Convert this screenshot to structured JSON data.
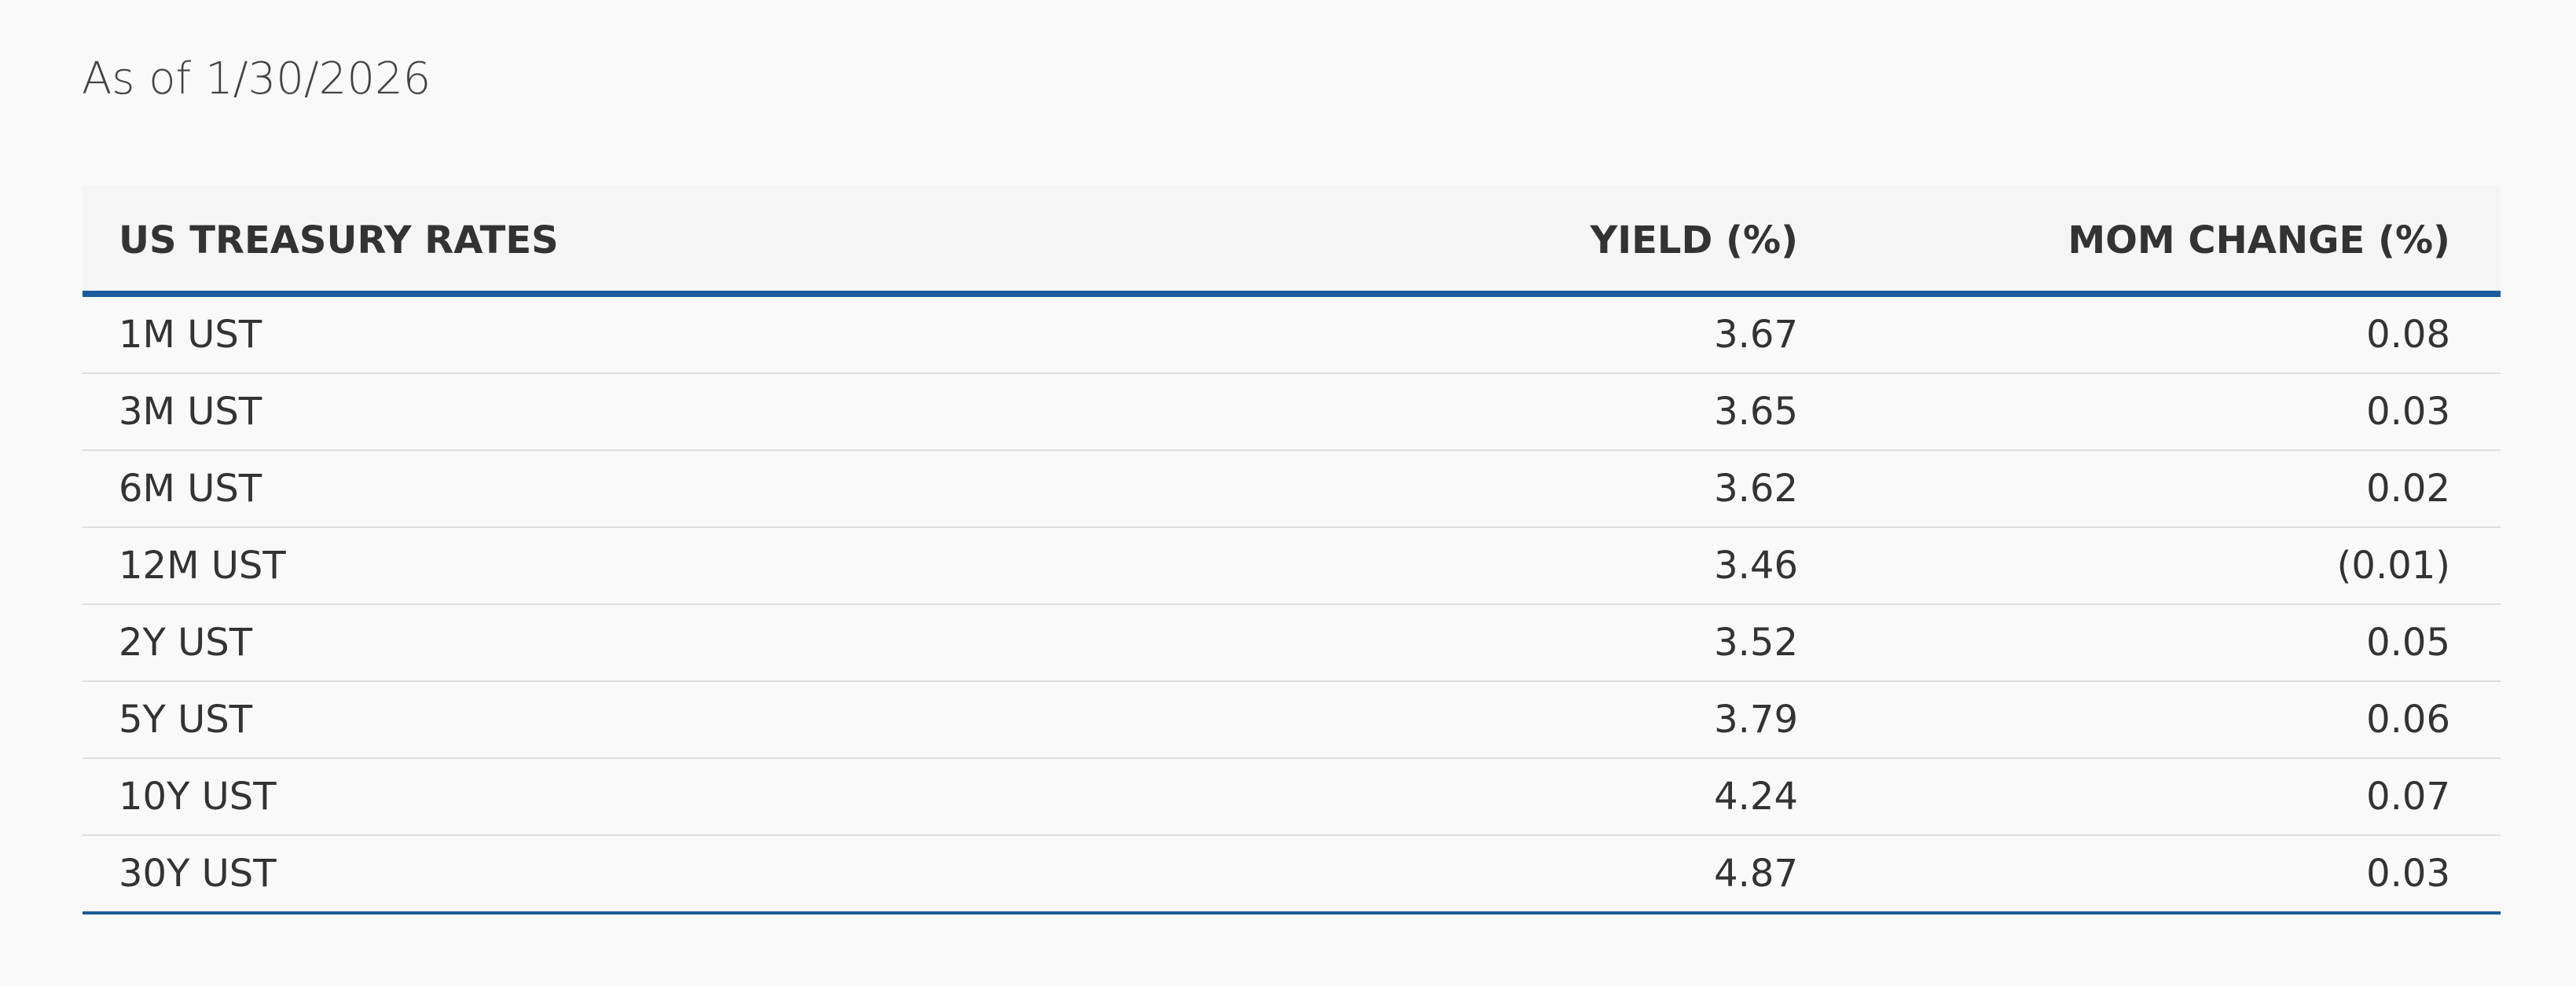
{
  "header": {
    "as_of": "As of 1/30/2026"
  },
  "table": {
    "columns": [
      "US TREASURY RATES",
      "YIELD (%)",
      "MOM CHANGE (%)"
    ],
    "rows": [
      [
        "1M UST",
        "3.67",
        "0.08"
      ],
      [
        "3M UST",
        "3.65",
        "0.03"
      ],
      [
        "6M UST",
        "3.62",
        "0.02"
      ],
      [
        "12M UST",
        "3.46",
        "(0.01)"
      ],
      [
        "2Y UST",
        "3.52",
        "0.05"
      ],
      [
        "5Y UST",
        "3.79",
        "0.06"
      ],
      [
        "10Y UST",
        "4.24",
        "0.07"
      ],
      [
        "30Y UST",
        "4.87",
        "0.03"
      ]
    ]
  }
}
